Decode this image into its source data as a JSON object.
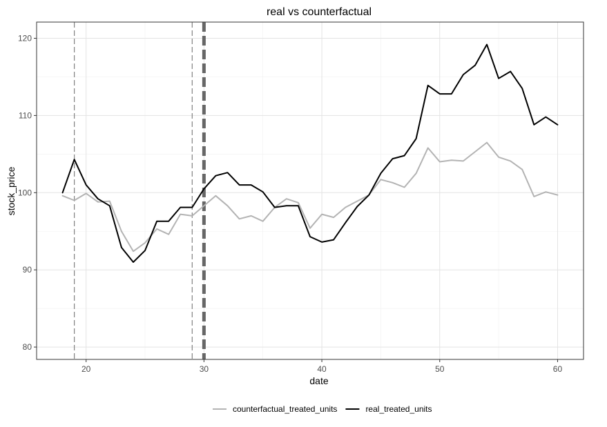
{
  "chart_data": {
    "type": "line",
    "title": "real vs counterfactual",
    "xlabel": "date",
    "ylabel": "stock_price",
    "xlim": [
      15.8,
      62.2
    ],
    "ylim": [
      78.4,
      122.1
    ],
    "x_ticks": [
      20,
      30,
      40,
      50,
      60
    ],
    "y_ticks": [
      80,
      90,
      100,
      110,
      120
    ],
    "grid": true,
    "legend_position": "bottom",
    "vlines": [
      {
        "x": 19,
        "style": "dashed",
        "weight": "thin",
        "color": "#808080"
      },
      {
        "x": 29,
        "style": "dashed",
        "weight": "thin",
        "color": "#808080"
      },
      {
        "x": 30,
        "style": "dashed",
        "weight": "thick",
        "color": "#666666"
      }
    ],
    "x": [
      18,
      19,
      20,
      21,
      22,
      23,
      24,
      25,
      26,
      27,
      28,
      29,
      30,
      31,
      32,
      33,
      34,
      35,
      36,
      37,
      38,
      39,
      40,
      41,
      42,
      43,
      44,
      45,
      46,
      47,
      48,
      49,
      50,
      51,
      52,
      53,
      54,
      55,
      56,
      57,
      58,
      59,
      60
    ],
    "series": [
      {
        "name": "counterfactual_treated_units",
        "color": "#b3b3b3",
        "values": [
          99.6,
          99.0,
          99.9,
          98.8,
          98.9,
          95.0,
          92.4,
          93.5,
          95.3,
          94.6,
          97.2,
          97.0,
          98.3,
          99.6,
          98.3,
          96.6,
          97.0,
          96.3,
          98.1,
          99.2,
          98.7,
          95.4,
          97.2,
          96.8,
          98.1,
          98.9,
          99.7,
          101.7,
          101.3,
          100.7,
          102.5,
          105.8,
          104.0,
          104.2,
          104.1,
          105.3,
          106.5,
          104.6,
          104.1,
          103.0,
          99.5,
          100.1,
          99.7
        ]
      },
      {
        "name": "real_treated_units",
        "color": "#000000",
        "values": [
          100.0,
          104.3,
          101.0,
          99.2,
          98.3,
          92.9,
          91.0,
          92.5,
          96.3,
          96.3,
          98.1,
          98.1,
          100.5,
          102.2,
          102.6,
          101.0,
          101.0,
          100.1,
          98.1,
          98.3,
          98.3,
          94.3,
          93.6,
          93.9,
          96.1,
          98.2,
          99.7,
          102.5,
          104.4,
          104.8,
          107.0,
          113.9,
          112.8,
          112.8,
          115.3,
          116.5,
          119.2,
          114.8,
          115.7,
          113.5,
          108.8,
          109.8,
          108.8
        ]
      }
    ]
  }
}
